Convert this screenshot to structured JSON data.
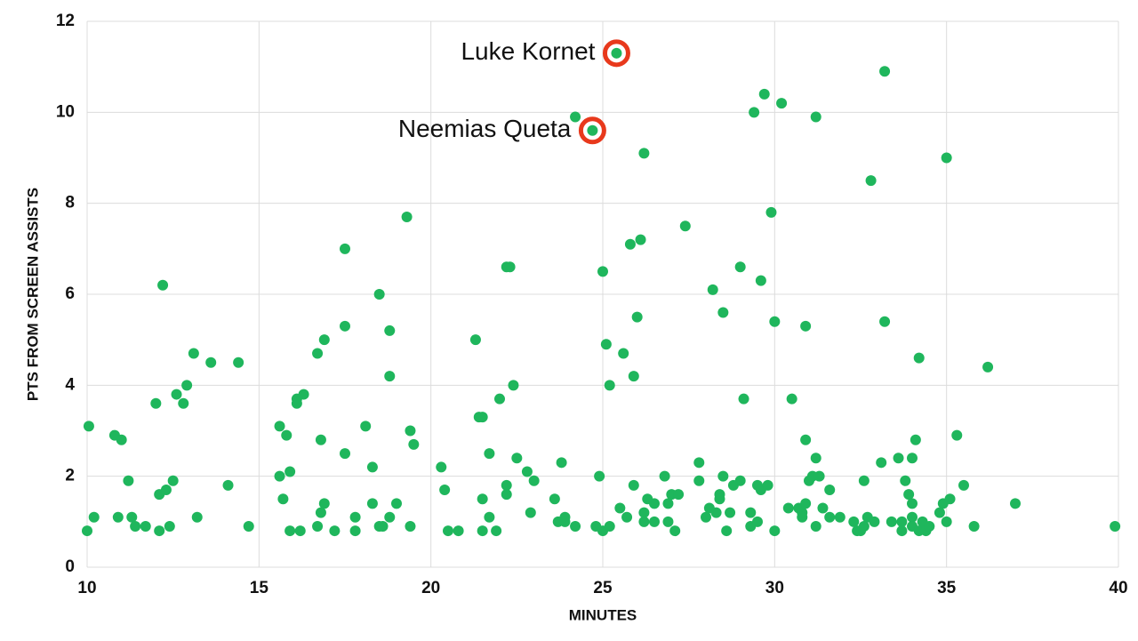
{
  "chart_data": {
    "type": "scatter",
    "x_label": "MINUTES",
    "y_label": "PTS FROM SCREEN ASSISTS",
    "xlim": [
      10,
      40
    ],
    "xticks": [
      10,
      15,
      20,
      25,
      30,
      35,
      40
    ],
    "ylim": [
      0,
      12
    ],
    "yticks": [
      0,
      2,
      4,
      6,
      8,
      10,
      12
    ],
    "grid": true,
    "color": "#1fb65c",
    "highlight_color": "#e8391c",
    "x": [
      10.05,
      10.0,
      10.2,
      10.8,
      11.0,
      10.9,
      11.2,
      11.3,
      11.4,
      11.7,
      12.0,
      12.2,
      12.1,
      12.3,
      12.5,
      12.1,
      12.4,
      12.6,
      12.8,
      12.9,
      13.1,
      13.2,
      13.6,
      14.1,
      14.4,
      14.7,
      15.6,
      15.6,
      15.7,
      15.8,
      15.9,
      15.9,
      16.1,
      16.1,
      16.2,
      16.3,
      16.7,
      16.7,
      16.8,
      16.8,
      16.9,
      16.9,
      17.2,
      17.5,
      17.5,
      17.5,
      17.8,
      17.8,
      18.1,
      18.3,
      18.3,
      18.5,
      18.5,
      18.6,
      18.8,
      18.8,
      18.8,
      19.0,
      19.3,
      19.4,
      19.4,
      19.5,
      20.3,
      20.4,
      20.5,
      20.8,
      21.3,
      21.4,
      21.5,
      21.5,
      21.5,
      21.7,
      21.7,
      21.9,
      22.0,
      22.2,
      22.3,
      22.2,
      22.2,
      22.4,
      22.5,
      22.8,
      22.9,
      23.0,
      23.6,
      23.7,
      23.8,
      23.9,
      23.9,
      24.2,
      24.2,
      24.7,
      24.8,
      24.9,
      25.0,
      25.0,
      25.1,
      25.2,
      25.2,
      25.4,
      25.5,
      25.6,
      25.7,
      25.8,
      25.9,
      25.9,
      26.0,
      26.1,
      26.2,
      26.2,
      26.2,
      26.3,
      26.5,
      26.5,
      26.8,
      26.9,
      26.9,
      27.0,
      27.1,
      27.2,
      27.4,
      27.8,
      27.8,
      28.0,
      28.1,
      28.2,
      28.3,
      28.4,
      28.4,
      28.5,
      28.5,
      28.6,
      28.7,
      28.8,
      29.0,
      29.0,
      29.1,
      29.3,
      29.3,
      29.4,
      29.5,
      29.5,
      29.6,
      29.6,
      29.7,
      29.8,
      29.9,
      30.0,
      30.0,
      30.2,
      30.4,
      30.5,
      30.7,
      30.8,
      30.8,
      30.9,
      30.9,
      30.9,
      31.0,
      31.1,
      31.2,
      31.2,
      31.2,
      31.3,
      31.4,
      31.6,
      31.6,
      31.9,
      32.3,
      32.4,
      32.5,
      32.6,
      32.6,
      32.7,
      32.8,
      32.9,
      33.1,
      33.2,
      33.2,
      33.4,
      33.6,
      33.7,
      33.7,
      33.8,
      33.9,
      34.0,
      34.0,
      34.0,
      34.0,
      34.1,
      34.2,
      34.2,
      34.3,
      34.4,
      34.5,
      34.8,
      34.9,
      35.0,
      35.0,
      35.1,
      35.3,
      35.5,
      35.8,
      36.2,
      37.0,
      39.9
    ],
    "values": [
      3.1,
      0.8,
      1.1,
      2.9,
      2.8,
      1.1,
      1.9,
      1.1,
      0.9,
      0.9,
      3.6,
      6.2,
      1.6,
      1.7,
      1.9,
      0.8,
      0.9,
      3.8,
      3.6,
      4.0,
      4.7,
      1.1,
      4.5,
      1.8,
      4.5,
      0.9,
      3.1,
      2.0,
      1.5,
      2.9,
      2.1,
      0.8,
      3.7,
      3.6,
      0.8,
      3.8,
      4.7,
      0.9,
      2.8,
      1.2,
      5.0,
      1.4,
      0.8,
      7.0,
      5.3,
      2.5,
      1.1,
      0.8,
      3.1,
      2.2,
      1.4,
      6.0,
      0.9,
      0.9,
      5.2,
      4.2,
      1.1,
      1.4,
      7.7,
      3.0,
      0.9,
      2.7,
      2.2,
      1.7,
      0.8,
      0.8,
      5.0,
      3.3,
      3.3,
      1.5,
      0.8,
      2.5,
      1.1,
      0.8,
      3.7,
      6.6,
      6.6,
      1.8,
      1.6,
      4.0,
      2.4,
      2.1,
      1.2,
      1.9,
      1.5,
      1.0,
      2.3,
      1.1,
      1.0,
      9.9,
      0.9,
      9.6,
      0.9,
      2.0,
      6.5,
      0.8,
      4.9,
      4.0,
      0.9,
      11.3,
      1.3,
      4.7,
      1.1,
      7.1,
      4.2,
      1.8,
      5.5,
      7.2,
      9.1,
      1.2,
      1.0,
      1.5,
      1.0,
      1.4,
      2.0,
      1.4,
      1.0,
      1.6,
      0.8,
      1.6,
      7.5,
      2.3,
      1.9,
      1.1,
      1.3,
      6.1,
      1.2,
      1.6,
      1.5,
      2.0,
      5.6,
      0.8,
      1.2,
      1.8,
      6.6,
      1.9,
      3.7,
      1.2,
      0.9,
      10.0,
      1.8,
      1.0,
      6.3,
      1.7,
      10.4,
      1.8,
      7.8,
      5.4,
      0.8,
      10.2,
      1.3,
      3.7,
      1.3,
      1.2,
      1.1,
      5.3,
      2.8,
      1.4,
      1.9,
      2.0,
      9.9,
      2.4,
      0.9,
      2.0,
      1.3,
      1.7,
      1.1,
      1.1,
      1.0,
      0.8,
      0.8,
      1.9,
      0.9,
      1.1,
      8.5,
      1.0,
      2.3,
      10.9,
      5.4,
      1.0,
      2.4,
      1.0,
      0.8,
      1.9,
      1.6,
      2.4,
      1.4,
      1.1,
      0.9,
      2.8,
      4.6,
      0.8,
      1.0,
      0.8,
      0.9,
      1.2,
      1.4,
      9.0,
      1.0,
      1.5,
      2.9,
      1.8,
      0.9,
      4.4,
      1.4,
      0.9
    ],
    "annotations": [
      {
        "text": "Luke Kornet",
        "x": 25.4,
        "y": 11.3
      },
      {
        "text": "Neemias Queta",
        "x": 24.7,
        "y": 9.6
      }
    ]
  }
}
